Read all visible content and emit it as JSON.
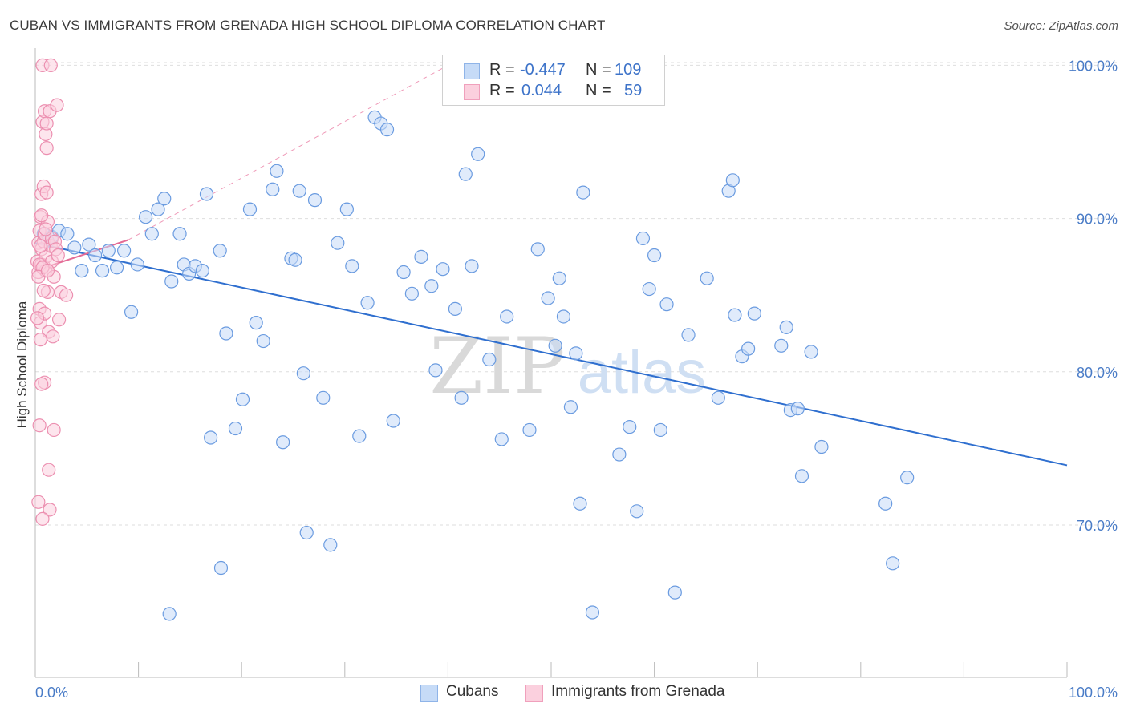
{
  "title": "CUBAN VS IMMIGRANTS FROM GRENADA HIGH SCHOOL DIPLOMA CORRELATION CHART",
  "source": "Source: ZipAtlas.com",
  "watermark": {
    "zip": "ZIP",
    "atlas": "atlas"
  },
  "legend": {
    "rows": [
      {
        "r_label": "R =",
        "r_value": "-0.447",
        "n_label": "N =",
        "n_value": "109",
        "color": "#8fb4e8",
        "fill": "#c6dbf7"
      },
      {
        "r_label": "R =",
        "r_value": "0.044",
        "n_label": "N =",
        "n_value": "59",
        "color": "#f0a0bc",
        "fill": "#fbd0de"
      }
    ]
  },
  "bottom_legend": [
    {
      "label": "Cubans",
      "color": "#8fb4e8",
      "fill": "#c6dbf7"
    },
    {
      "label": "Immigrants from Grenada",
      "color": "#f0a0bc",
      "fill": "#fbd0de"
    }
  ],
  "chart_data": {
    "type": "scatter",
    "title": "CUBAN VS IMMIGRANTS FROM GRENADA HIGH SCHOOL DIPLOMA CORRELATION CHART",
    "xlabel": "",
    "ylabel": "High School Diploma",
    "xlim": [
      0,
      100
    ],
    "ylim": [
      60,
      102
    ],
    "x_tick_labels": [
      "0.0%",
      "100.0%"
    ],
    "y_ticks": [
      70,
      80,
      90,
      100
    ],
    "y_tick_labels": [
      "70.0%",
      "80.0%",
      "90.0%",
      "100.0%"
    ],
    "grid": true,
    "legend_position": "top-center",
    "series": [
      {
        "name": "Cubans",
        "color": "#6a9be0",
        "fill": "#c6dbf7",
        "trend": {
          "x": [
            0,
            100
          ],
          "y": [
            88.4,
            73.9
          ],
          "color": "#2f6fcf"
        },
        "points": [
          [
            0.8,
            89.0
          ],
          [
            1.2,
            88.5
          ],
          [
            1.6,
            88.8
          ],
          [
            2.3,
            89.2
          ],
          [
            3.1,
            89.0
          ],
          [
            3.8,
            88.1
          ],
          [
            4.5,
            86.6
          ],
          [
            5.2,
            88.3
          ],
          [
            5.8,
            87.6
          ],
          [
            6.5,
            86.6
          ],
          [
            7.1,
            87.9
          ],
          [
            7.9,
            86.8
          ],
          [
            8.6,
            87.9
          ],
          [
            9.3,
            83.9
          ],
          [
            9.9,
            87.0
          ],
          [
            10.7,
            90.1
          ],
          [
            11.3,
            89.0
          ],
          [
            11.9,
            90.6
          ],
          [
            12.5,
            91.3
          ],
          [
            13.2,
            85.9
          ],
          [
            14.0,
            89.0
          ],
          [
            14.4,
            87.0
          ],
          [
            14.9,
            86.4
          ],
          [
            15.5,
            86.9
          ],
          [
            16.2,
            86.6
          ],
          [
            16.6,
            91.6
          ],
          [
            17.0,
            75.7
          ],
          [
            17.9,
            87.9
          ],
          [
            18.5,
            82.5
          ],
          [
            19.4,
            76.3
          ],
          [
            20.1,
            78.2
          ],
          [
            20.8,
            90.6
          ],
          [
            21.4,
            83.2
          ],
          [
            22.1,
            82.0
          ],
          [
            23.0,
            91.9
          ],
          [
            23.4,
            93.1
          ],
          [
            24.0,
            75.4
          ],
          [
            24.8,
            87.4
          ],
          [
            25.2,
            87.3
          ],
          [
            25.6,
            91.8
          ],
          [
            26.3,
            69.5
          ],
          [
            27.1,
            91.2
          ],
          [
            27.9,
            78.3
          ],
          [
            28.6,
            68.7
          ],
          [
            29.3,
            88.4
          ],
          [
            30.2,
            90.6
          ],
          [
            30.7,
            86.9
          ],
          [
            31.4,
            75.8
          ],
          [
            32.2,
            84.5
          ],
          [
            32.9,
            96.6
          ],
          [
            33.5,
            96.2
          ],
          [
            34.1,
            95.8
          ],
          [
            34.7,
            76.8
          ],
          [
            35.7,
            86.5
          ],
          [
            36.5,
            85.1
          ],
          [
            37.4,
            87.5
          ],
          [
            38.4,
            85.6
          ],
          [
            38.8,
            80.1
          ],
          [
            39.5,
            86.7
          ],
          [
            40.7,
            84.1
          ],
          [
            41.3,
            78.3
          ],
          [
            41.7,
            92.9
          ],
          [
            42.3,
            86.9
          ],
          [
            42.9,
            94.2
          ],
          [
            44.0,
            80.8
          ],
          [
            45.2,
            75.6
          ],
          [
            45.7,
            83.6
          ],
          [
            47.9,
            76.2
          ],
          [
            48.7,
            88.0
          ],
          [
            49.7,
            84.8
          ],
          [
            50.4,
            81.7
          ],
          [
            50.8,
            86.1
          ],
          [
            51.2,
            83.6
          ],
          [
            51.9,
            77.7
          ],
          [
            52.4,
            81.2
          ],
          [
            52.8,
            71.4
          ],
          [
            53.1,
            91.7
          ],
          [
            56.6,
            74.6
          ],
          [
            57.6,
            76.4
          ],
          [
            58.3,
            70.9
          ],
          [
            58.9,
            88.7
          ],
          [
            59.5,
            85.4
          ],
          [
            60.6,
            76.2
          ],
          [
            61.2,
            84.4
          ],
          [
            62.0,
            65.6
          ],
          [
            63.3,
            82.4
          ],
          [
            65.1,
            86.1
          ],
          [
            66.2,
            78.3
          ],
          [
            67.2,
            91.8
          ],
          [
            67.6,
            92.5
          ],
          [
            67.8,
            83.7
          ],
          [
            68.5,
            81.0
          ],
          [
            69.1,
            81.5
          ],
          [
            69.7,
            83.8
          ],
          [
            72.3,
            81.7
          ],
          [
            72.8,
            82.9
          ],
          [
            73.2,
            77.5
          ],
          [
            73.9,
            77.6
          ],
          [
            74.3,
            73.2
          ],
          [
            75.2,
            81.3
          ],
          [
            76.2,
            75.1
          ],
          [
            82.4,
            71.4
          ],
          [
            83.1,
            67.5
          ],
          [
            84.5,
            73.1
          ],
          [
            18.0,
            67.2
          ],
          [
            13.0,
            64.2
          ],
          [
            54.0,
            64.3
          ],
          [
            26.0,
            79.9
          ],
          [
            60.0,
            87.6
          ]
        ]
      },
      {
        "name": "Immigrants from Grenada",
        "color": "#ec8fb0",
        "fill": "#fbd0de",
        "trend": {
          "x": [
            0,
            9
          ],
          "y": [
            86.6,
            88.6
          ],
          "dashed_to": [
            40,
            100
          ],
          "color": "#e46a95"
        },
        "points": [
          [
            0.2,
            87.2
          ],
          [
            0.3,
            88.4
          ],
          [
            0.3,
            86.5
          ],
          [
            0.4,
            89.2
          ],
          [
            0.4,
            84.1
          ],
          [
            0.5,
            83.2
          ],
          [
            0.5,
            90.1
          ],
          [
            0.6,
            88.0
          ],
          [
            0.6,
            87.0
          ],
          [
            0.6,
            91.6
          ],
          [
            0.7,
            96.3
          ],
          [
            0.7,
            100.0
          ],
          [
            0.8,
            92.1
          ],
          [
            0.8,
            86.9
          ],
          [
            0.8,
            88.5
          ],
          [
            0.9,
            97.0
          ],
          [
            0.9,
            89.0
          ],
          [
            0.9,
            79.3
          ],
          [
            1.0,
            87.5
          ],
          [
            1.0,
            95.5
          ],
          [
            1.0,
            86.6
          ],
          [
            1.1,
            94.6
          ],
          [
            1.1,
            96.2
          ],
          [
            1.2,
            89.8
          ],
          [
            1.2,
            85.2
          ],
          [
            1.3,
            82.6
          ],
          [
            1.3,
            73.6
          ],
          [
            1.4,
            71.0
          ],
          [
            1.4,
            97.0
          ],
          [
            1.5,
            100.0
          ],
          [
            1.5,
            88.2
          ],
          [
            1.6,
            88.7
          ],
          [
            1.6,
            87.2
          ],
          [
            1.7,
            82.3
          ],
          [
            1.8,
            76.2
          ],
          [
            1.8,
            86.2
          ],
          [
            1.9,
            88.5
          ],
          [
            2.0,
            88.0
          ],
          [
            2.1,
            97.4
          ],
          [
            2.2,
            87.6
          ],
          [
            2.3,
            83.4
          ],
          [
            2.5,
            85.2
          ],
          [
            0.3,
            71.5
          ],
          [
            0.4,
            76.5
          ],
          [
            0.5,
            82.1
          ],
          [
            0.6,
            79.2
          ],
          [
            0.7,
            70.4
          ],
          [
            0.9,
            83.8
          ],
          [
            1.0,
            89.3
          ],
          [
            1.1,
            91.7
          ],
          [
            0.4,
            87.0
          ],
          [
            0.5,
            88.2
          ],
          [
            0.7,
            86.8
          ],
          [
            0.8,
            85.3
          ],
          [
            0.2,
            83.5
          ],
          [
            0.3,
            86.2
          ],
          [
            1.2,
            86.6
          ],
          [
            0.6,
            90.2
          ],
          [
            3.0,
            85.0
          ]
        ]
      }
    ]
  }
}
